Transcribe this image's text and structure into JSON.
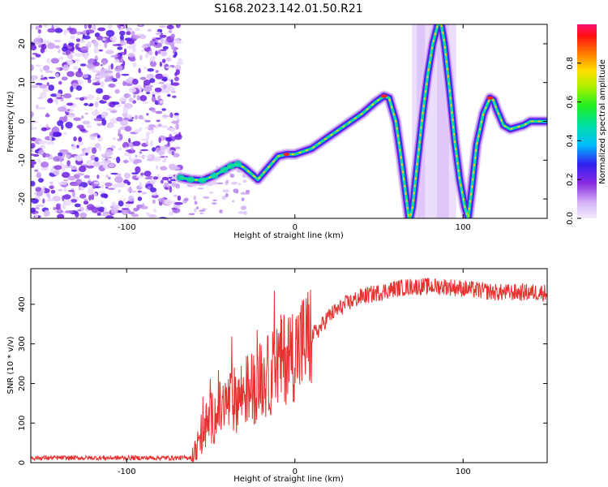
{
  "figure": {
    "title": "S168.2023.142.01.50.R21"
  },
  "chart_data": [
    {
      "type": "heatmap",
      "xlabel": "Height of straight line (km)",
      "ylabel": "Frequency (Hz)",
      "xlim": [
        -157,
        150
      ],
      "ylim": [
        -25,
        25
      ],
      "xticks": [
        -100,
        0,
        100
      ],
      "yticks": [
        -20,
        -10,
        0,
        10,
        20
      ],
      "noise_region_x": [
        -157,
        -68
      ],
      "ridge": {
        "x": [
          -68,
          -62,
          -55,
          -48,
          -42,
          -38,
          -34,
          -30,
          -26,
          -22,
          -18,
          -14,
          -10,
          -5,
          0,
          10,
          20,
          30,
          40,
          48,
          53,
          56,
          60,
          63,
          66,
          68,
          70,
          73,
          76,
          79,
          82,
          85,
          87,
          89,
          92,
          95,
          98,
          101,
          103,
          105,
          108,
          112,
          116,
          118,
          120,
          124,
          128,
          132,
          136,
          140,
          145,
          149
        ],
        "y": [
          -14.5,
          -15,
          -15.2,
          -14,
          -12.5,
          -11.5,
          -11,
          -12,
          -13.5,
          -15,
          -13,
          -11,
          -9,
          -8.5,
          -8.5,
          -7,
          -4,
          -1,
          2,
          5,
          6.5,
          6,
          0,
          -9,
          -19,
          -26,
          -22,
          -10,
          2,
          12,
          20,
          25,
          25,
          20,
          8,
          -5,
          -15,
          -22,
          -25,
          -18,
          -6,
          2,
          6,
          5.5,
          3,
          -1,
          -2,
          -1.5,
          -1,
          0,
          0,
          0
        ]
      },
      "ghosts": [
        {
          "x": 75,
          "width_km": 5
        },
        {
          "x": 88,
          "width_km": 10
        }
      ],
      "colorbar": {
        "label": "Normalized spectral amplitude",
        "range": [
          0,
          1
        ],
        "ticks": [
          0.0,
          0.2,
          0.4,
          0.6,
          0.8
        ]
      }
    },
    {
      "type": "line",
      "xlabel": "Height of straight line (km)",
      "ylabel": "SNR (10 * v/v)",
      "xlim": [
        -157,
        150
      ],
      "ylim": [
        0,
        490
      ],
      "xticks": [
        -100,
        0,
        100
      ],
      "yticks": [
        0,
        100,
        200,
        300,
        400
      ],
      "series": [
        {
          "color": "#e8302f",
          "x": [
            -157,
            -140,
            -120,
            -100,
            -80,
            -65,
            -60,
            -58,
            -55,
            -50,
            -45,
            -40,
            -35,
            -30,
            -25,
            -20,
            -15,
            -10,
            -5,
            0,
            5,
            10,
            15,
            20,
            30,
            40,
            50,
            60,
            70,
            80,
            90,
            100,
            110,
            120,
            130,
            140,
            150
          ],
          "y": [
            12,
            12,
            12,
            12,
            12,
            12,
            15,
            40,
            80,
            110,
            130,
            150,
            160,
            180,
            190,
            210,
            220,
            250,
            270,
            280,
            300,
            320,
            340,
            370,
            400,
            420,
            430,
            440,
            445,
            445,
            445,
            440,
            435,
            430,
            430,
            430,
            430
          ]
        }
      ]
    }
  ]
}
